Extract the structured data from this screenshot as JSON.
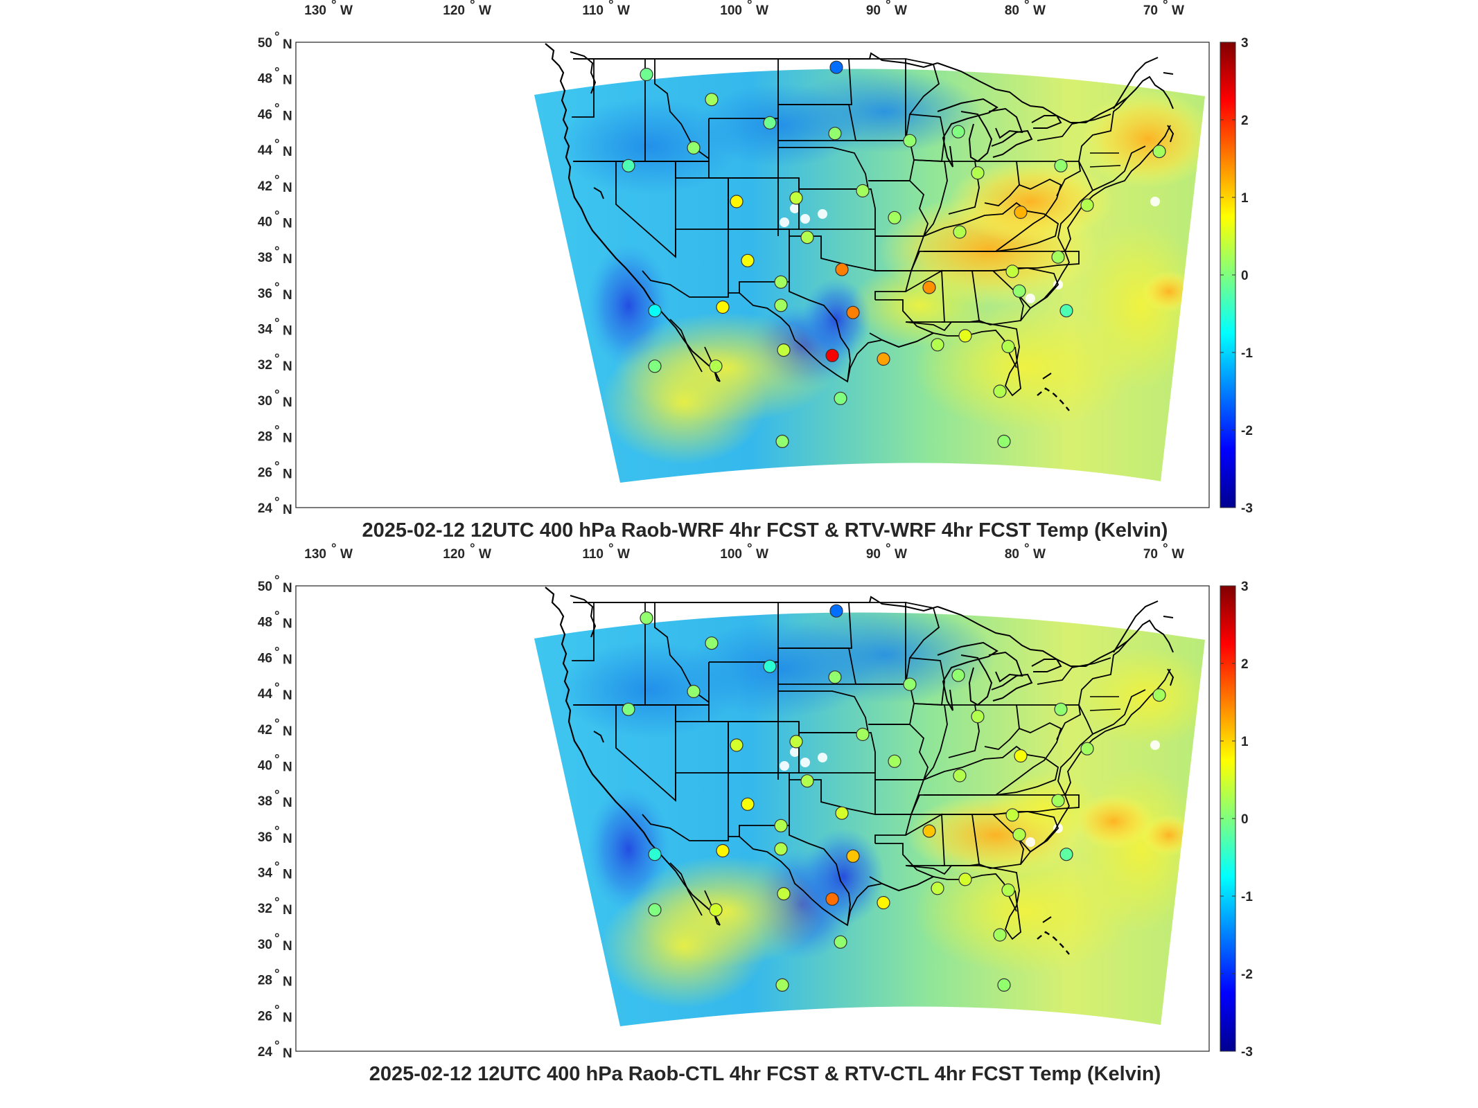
{
  "panels": [
    {
      "id": "wrf",
      "title": "2025-02-12 12UTC 400 hPa Raob-WRF 4hr FCST & RTV-WRF 4hr FCST Temp (Kelvin)",
      "stations": [
        {
          "lon": -107.2,
          "lat": 48.2,
          "value": -0.1
        },
        {
          "lon": -102.5,
          "lat": 46.8,
          "value": 0.2
        },
        {
          "lon": -98.3,
          "lat": 45.5,
          "value": -0.1
        },
        {
          "lon": -93.5,
          "lat": 48.6,
          "value": -1.6
        },
        {
          "lon": -93.6,
          "lat": 44.9,
          "value": 0.1
        },
        {
          "lon": -103.8,
          "lat": 44.1,
          "value": 0.1
        },
        {
          "lon": -108.5,
          "lat": 43.1,
          "value": -0.3
        },
        {
          "lon": -100.7,
          "lat": 41.1,
          "value": 0.8
        },
        {
          "lon": -96.4,
          "lat": 41.3,
          "value": 0.4
        },
        {
          "lon": -91.6,
          "lat": 41.7,
          "value": 0.2
        },
        {
          "lon": -89.3,
          "lat": 40.2,
          "value": 0.2
        },
        {
          "lon": -88.2,
          "lat": 44.5,
          "value": 0.1
        },
        {
          "lon": -84.7,
          "lat": 45.0,
          "value": 0.0
        },
        {
          "lon": -83.3,
          "lat": 42.7,
          "value": 0.3
        },
        {
          "lon": -84.6,
          "lat": 39.4,
          "value": 0.3
        },
        {
          "lon": -80.2,
          "lat": 40.5,
          "value": 1.2
        },
        {
          "lon": -77.3,
          "lat": 43.1,
          "value": 0.1
        },
        {
          "lon": -75.4,
          "lat": 40.9,
          "value": 0.3
        },
        {
          "lon": -70.2,
          "lat": 43.9,
          "value": 0.2
        },
        {
          "lon": -77.5,
          "lat": 38.0,
          "value": 0.2
        },
        {
          "lon": -80.8,
          "lat": 37.2,
          "value": 0.4
        },
        {
          "lon": -80.3,
          "lat": 36.1,
          "value": 0.1
        },
        {
          "lon": -76.9,
          "lat": 35.0,
          "value": -0.3
        },
        {
          "lon": -81.1,
          "lat": 33.0,
          "value": 0.3
        },
        {
          "lon": -84.2,
          "lat": 33.6,
          "value": 0.6
        },
        {
          "lon": -86.2,
          "lat": 33.1,
          "value": 0.3
        },
        {
          "lon": -86.8,
          "lat": 36.3,
          "value": 1.4
        },
        {
          "lon": -92.3,
          "lat": 34.9,
          "value": 1.5
        },
        {
          "lon": -93.1,
          "lat": 37.3,
          "value": 1.5
        },
        {
          "lon": -95.6,
          "lat": 39.1,
          "value": 0.3
        },
        {
          "lon": -99.9,
          "lat": 37.8,
          "value": 0.7
        },
        {
          "lon": -97.5,
          "lat": 36.6,
          "value": 0.2
        },
        {
          "lon": -97.5,
          "lat": 35.3,
          "value": 0.2
        },
        {
          "lon": -101.7,
          "lat": 35.2,
          "value": 0.8
        },
        {
          "lon": -106.6,
          "lat": 35.0,
          "value": -0.7
        },
        {
          "lon": -106.6,
          "lat": 31.9,
          "value": 0.0
        },
        {
          "lon": -102.2,
          "lat": 31.9,
          "value": 0.3
        },
        {
          "lon": -97.3,
          "lat": 32.8,
          "value": 0.4
        },
        {
          "lon": -93.8,
          "lat": 32.5,
          "value": 2.3
        },
        {
          "lon": -90.1,
          "lat": 32.3,
          "value": 1.3
        },
        {
          "lon": -93.2,
          "lat": 30.1,
          "value": 0.0
        },
        {
          "lon": -97.4,
          "lat": 27.7,
          "value": 0.1
        },
        {
          "lon": -81.4,
          "lat": 27.7,
          "value": 0.1
        },
        {
          "lon": -81.7,
          "lat": 30.5,
          "value": 0.3
        }
      ]
    },
    {
      "id": "ctl",
      "title": "2025-02-12 12UTC 400 hPa Raob-CTL 4hr FCST & RTV-CTL 4hr FCST Temp (Kelvin)",
      "stations": [
        {
          "lon": -107.2,
          "lat": 48.2,
          "value": 0.1
        },
        {
          "lon": -102.5,
          "lat": 46.8,
          "value": 0.1
        },
        {
          "lon": -98.3,
          "lat": 45.5,
          "value": -0.5
        },
        {
          "lon": -93.5,
          "lat": 48.6,
          "value": -1.6
        },
        {
          "lon": -93.6,
          "lat": 44.9,
          "value": 0.1
        },
        {
          "lon": -103.8,
          "lat": 44.1,
          "value": 0.1
        },
        {
          "lon": -108.5,
          "lat": 43.1,
          "value": 0.0
        },
        {
          "lon": -100.7,
          "lat": 41.1,
          "value": 0.5
        },
        {
          "lon": -96.4,
          "lat": 41.3,
          "value": 0.4
        },
        {
          "lon": -91.6,
          "lat": 41.7,
          "value": 0.2
        },
        {
          "lon": -89.3,
          "lat": 40.2,
          "value": 0.2
        },
        {
          "lon": -88.2,
          "lat": 44.5,
          "value": 0.1
        },
        {
          "lon": -84.7,
          "lat": 45.0,
          "value": 0.1
        },
        {
          "lon": -83.3,
          "lat": 42.7,
          "value": 0.3
        },
        {
          "lon": -84.6,
          "lat": 39.4,
          "value": 0.3
        },
        {
          "lon": -80.2,
          "lat": 40.5,
          "value": 0.7
        },
        {
          "lon": -77.3,
          "lat": 43.1,
          "value": 0.1
        },
        {
          "lon": -75.4,
          "lat": 40.9,
          "value": 0.2
        },
        {
          "lon": -70.2,
          "lat": 43.9,
          "value": 0.2
        },
        {
          "lon": -77.5,
          "lat": 38.0,
          "value": 0.2
        },
        {
          "lon": -80.8,
          "lat": 37.2,
          "value": 0.4
        },
        {
          "lon": -80.3,
          "lat": 36.1,
          "value": 0.3
        },
        {
          "lon": -76.9,
          "lat": 35.0,
          "value": -0.2
        },
        {
          "lon": -81.1,
          "lat": 33.0,
          "value": 0.3
        },
        {
          "lon": -84.2,
          "lat": 33.6,
          "value": 0.5
        },
        {
          "lon": -86.2,
          "lat": 33.1,
          "value": 0.4
        },
        {
          "lon": -86.8,
          "lat": 36.3,
          "value": 1.1
        },
        {
          "lon": -92.3,
          "lat": 34.9,
          "value": 1.1
        },
        {
          "lon": -93.1,
          "lat": 37.3,
          "value": 0.5
        },
        {
          "lon": -95.6,
          "lat": 39.1,
          "value": 0.3
        },
        {
          "lon": -99.9,
          "lat": 37.8,
          "value": 0.7
        },
        {
          "lon": -97.5,
          "lat": 36.6,
          "value": 0.3
        },
        {
          "lon": -97.5,
          "lat": 35.3,
          "value": 0.3
        },
        {
          "lon": -101.7,
          "lat": 35.2,
          "value": 0.8
        },
        {
          "lon": -106.6,
          "lat": 35.0,
          "value": -0.5
        },
        {
          "lon": -106.6,
          "lat": 31.9,
          "value": 0.0
        },
        {
          "lon": -102.2,
          "lat": 31.9,
          "value": 0.5
        },
        {
          "lon": -97.3,
          "lat": 32.8,
          "value": 0.4
        },
        {
          "lon": -93.8,
          "lat": 32.5,
          "value": 1.6
        },
        {
          "lon": -90.1,
          "lat": 32.3,
          "value": 0.8
        },
        {
          "lon": -93.2,
          "lat": 30.1,
          "value": 0.1
        },
        {
          "lon": -97.4,
          "lat": 27.7,
          "value": 0.2
        },
        {
          "lon": -81.4,
          "lat": 27.7,
          "value": 0.1
        },
        {
          "lon": -81.7,
          "lat": 30.5,
          "value": 0.2
        }
      ]
    }
  ],
  "axis": {
    "lon_ticks": [
      "130",
      "120",
      "110",
      "100",
      "90",
      "80",
      "70"
    ],
    "lon_hemisphere": "W",
    "lat_ticks": [
      "50",
      "48",
      "46",
      "44",
      "42",
      "40",
      "38",
      "36",
      "34",
      "32",
      "30",
      "28",
      "26",
      "24"
    ],
    "lat_hemisphere": "N",
    "degree_symbol": "°"
  },
  "colorbar": {
    "min": -3,
    "max": 3,
    "ticks": [
      "3",
      "2",
      "1",
      "0",
      "-1",
      "-2",
      "-3"
    ],
    "colormap": "jet"
  }
}
